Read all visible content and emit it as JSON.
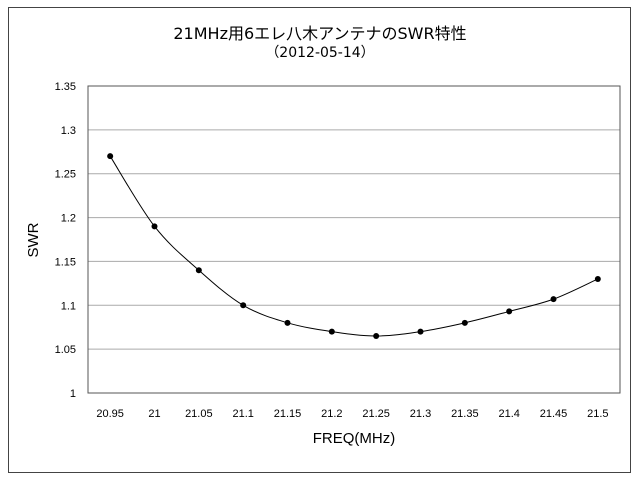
{
  "chart_data": {
    "type": "line",
    "title": "21MHz用6エレ八木アンテナのSWR特性",
    "subtitle": "（2012-05-14）",
    "xlabel": "FREQ(MHz)",
    "ylabel": "SWR",
    "ylim": [
      1,
      1.35
    ],
    "ytick_step": 0.05,
    "yticks": [
      "1",
      "1.05",
      "1.1",
      "1.15",
      "1.2",
      "1.25",
      "1.3",
      "1.35"
    ],
    "categories": [
      "20.95",
      "21",
      "21.05",
      "21.1",
      "21.15",
      "21.2",
      "21.25",
      "21.3",
      "21.35",
      "21.4",
      "21.45",
      "21.5"
    ],
    "values": [
      1.27,
      1.19,
      1.14,
      1.1,
      1.08,
      1.07,
      1.065,
      1.07,
      1.08,
      1.093,
      1.107,
      1.13
    ],
    "grid": true,
    "line_smoothed": true,
    "line_color": "#000000",
    "marker_color": "#000000",
    "gridline_color": "#aaaaaa"
  }
}
